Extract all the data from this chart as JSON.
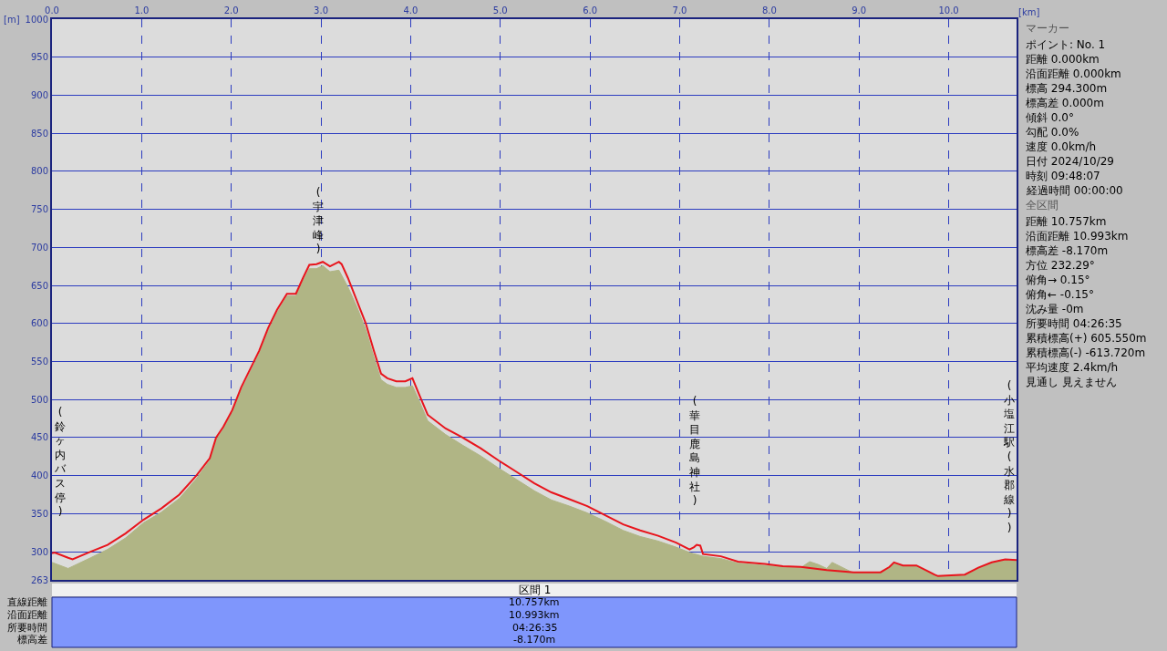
{
  "chart_data": {
    "type": "line",
    "xlabel": "[km]",
    "ylabel": "[m]",
    "xlim": [
      0,
      10.757
    ],
    "ylim": [
      263,
      1000
    ],
    "xticks": [
      {
        "value": 0,
        "label": "0.0"
      },
      {
        "value": 1,
        "label": "1.0"
      },
      {
        "value": 2,
        "label": "2.0"
      },
      {
        "value": 3,
        "label": "3.0"
      },
      {
        "value": 4,
        "label": "4.0"
      },
      {
        "value": 5,
        "label": "5.0"
      },
      {
        "value": 6,
        "label": "6.0"
      },
      {
        "value": 7,
        "label": "7.0"
      },
      {
        "value": 8,
        "label": "8.0"
      },
      {
        "value": 9,
        "label": "9.0"
      },
      {
        "value": 10,
        "label": "10.0"
      }
    ],
    "yticks": [
      263,
      300,
      350,
      400,
      450,
      500,
      550,
      600,
      650,
      700,
      750,
      800,
      850,
      900,
      950,
      1000
    ],
    "grid": true,
    "marker": "none",
    "series": [
      {
        "type": "area",
        "color": "#b0b585",
        "x": [
          0,
          0.18,
          0.43,
          0.62,
          0.82,
          1.02,
          1.22,
          1.42,
          1.61,
          1.76,
          1.83,
          1.91,
          2.01,
          2.11,
          2.21,
          2.31,
          2.41,
          2.51,
          2.62,
          2.72,
          2.8,
          2.87,
          2.95,
          3.02,
          3.1,
          3.2,
          3.3,
          3.4,
          3.5,
          3.59,
          3.67,
          3.74,
          3.84,
          3.94,
          4.02,
          4.09,
          4.19,
          4.39,
          4.58,
          4.78,
          4.98,
          5.18,
          5.38,
          5.57,
          5.77,
          5.97,
          6.17,
          6.37,
          6.56,
          6.76,
          6.96,
          7.11,
          7.26,
          7.46,
          7.65,
          7.95,
          8.15,
          8.35,
          8.45,
          8.55,
          8.64,
          8.7,
          8.94,
          9.24,
          9.34,
          9.39,
          9.49,
          9.64,
          9.84,
          9.88,
          10.18,
          10.33,
          10.48,
          10.63,
          10.757
        ],
        "values": [
          286,
          278,
          292,
          303,
          318,
          338,
          352,
          370,
          396,
          420,
          447,
          461,
          483,
          512,
          536,
          560,
          590,
          614,
          636,
          636,
          656,
          672,
          672,
          676,
          668,
          670,
          648,
          622,
          592,
          556,
          526,
          520,
          516,
          516,
          518,
          500,
          472,
          454,
          440,
          426,
          410,
          395,
          380,
          368,
          360,
          351,
          340,
          328,
          320,
          314,
          306,
          299,
          294,
          291,
          285,
          282,
          280,
          279,
          287,
          283,
          278,
          286,
          272,
          272,
          279,
          285,
          281,
          281,
          269,
          267,
          269,
          278,
          285,
          289,
          288
        ]
      },
      {
        "color": "#e8141c",
        "x": [
          0,
          0.03,
          0.18,
          0.23,
          0.43,
          0.62,
          0.82,
          1.02,
          1.22,
          1.42,
          1.61,
          1.76,
          1.83,
          1.91,
          2.01,
          2.11,
          2.21,
          2.31,
          2.41,
          2.51,
          2.62,
          2.72,
          2.8,
          2.87,
          2.95,
          3.02,
          3.1,
          3.2,
          3.23,
          3.3,
          3.4,
          3.5,
          3.59,
          3.67,
          3.74,
          3.84,
          3.94,
          4.02,
          4.09,
          4.19,
          4.39,
          4.58,
          4.78,
          4.98,
          5.18,
          5.38,
          5.57,
          5.77,
          5.97,
          6.17,
          6.37,
          6.56,
          6.76,
          6.96,
          7.11,
          7.16,
          7.19,
          7.23,
          7.26,
          7.46,
          7.65,
          7.95,
          8.15,
          8.35,
          8.64,
          8.94,
          9.24,
          9.34,
          9.39,
          9.49,
          9.64,
          9.84,
          9.88,
          10.18,
          10.33,
          10.48,
          10.63,
          10.757
        ],
        "values": [
          298,
          299,
          292,
          290,
          300,
          309,
          324,
          342,
          357,
          375,
          400,
          423,
          450,
          464,
          486,
          516,
          540,
          564,
          594,
          618,
          639,
          639,
          660,
          677,
          678,
          681,
          675,
          681,
          678,
          660,
          630,
          600,
          564,
          534,
          528,
          524,
          524,
          528,
          508,
          480,
          462,
          450,
          436,
          420,
          405,
          390,
          378,
          369,
          360,
          348,
          336,
          328,
          321,
          312,
          303,
          306,
          309,
          308,
          297,
          294,
          287,
          284,
          281,
          280,
          276,
          273,
          273,
          280,
          286,
          282,
          282,
          270,
          268,
          270,
          279,
          286,
          290,
          289
        ]
      }
    ],
    "annotations": [
      "(鈴ヶ内バス停)",
      "(宇津峰)",
      "(華目鹿島神社)",
      "(小塩江駅(水郡線))",
      "マーカー",
      "ポイント: No. 1",
      "距離 0.000km",
      "沿面距離 0.000km",
      "標高 294.300m",
      "標高差 0.000m",
      "傾斜 0.0°",
      "勾配 0.0%",
      "速度 0.0km/h",
      "日付 2024/10/29",
      "時刻 09:48:07",
      "経過時間 00:00:00",
      "全区間",
      "距離 10.757km",
      "沿面距離 10.993km",
      "標高差 -8.170m",
      "方位 232.29°",
      "俯角→ 0.15°",
      "俯角← -0.15°",
      "沈み量 -0m",
      "所要時間 04:26:35",
      "累積標高(+) 605.550m",
      "累積標高(-) -613.720m",
      "平均速度 2.4km/h",
      "見通し 見えません",
      "区間 1",
      "直線距離 10.757km",
      "沿面距離 10.993km",
      "所要時間 04:26:35",
      "標高差 -8.170m"
    ]
  }
}
